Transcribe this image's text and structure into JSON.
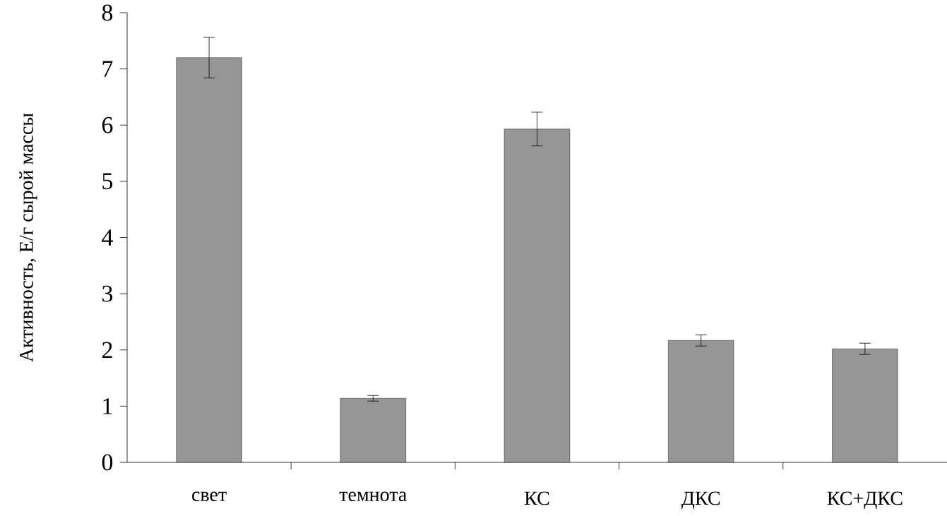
{
  "chart_data": {
    "type": "bar",
    "ylabel": "Активность, Е/г сырой массы",
    "categories": [
      "свет",
      "темнота",
      "КС",
      "ДКС",
      "КС+ДКС"
    ],
    "values": [
      7.2,
      1.14,
      5.93,
      2.17,
      2.02
    ],
    "errors": [
      0.36,
      0.05,
      0.3,
      0.1,
      0.1
    ],
    "color": "#969696",
    "ylim": [
      0,
      8
    ],
    "yticks": [
      0,
      1,
      2,
      3,
      4,
      5,
      6,
      7,
      8
    ],
    "grid": false
  }
}
